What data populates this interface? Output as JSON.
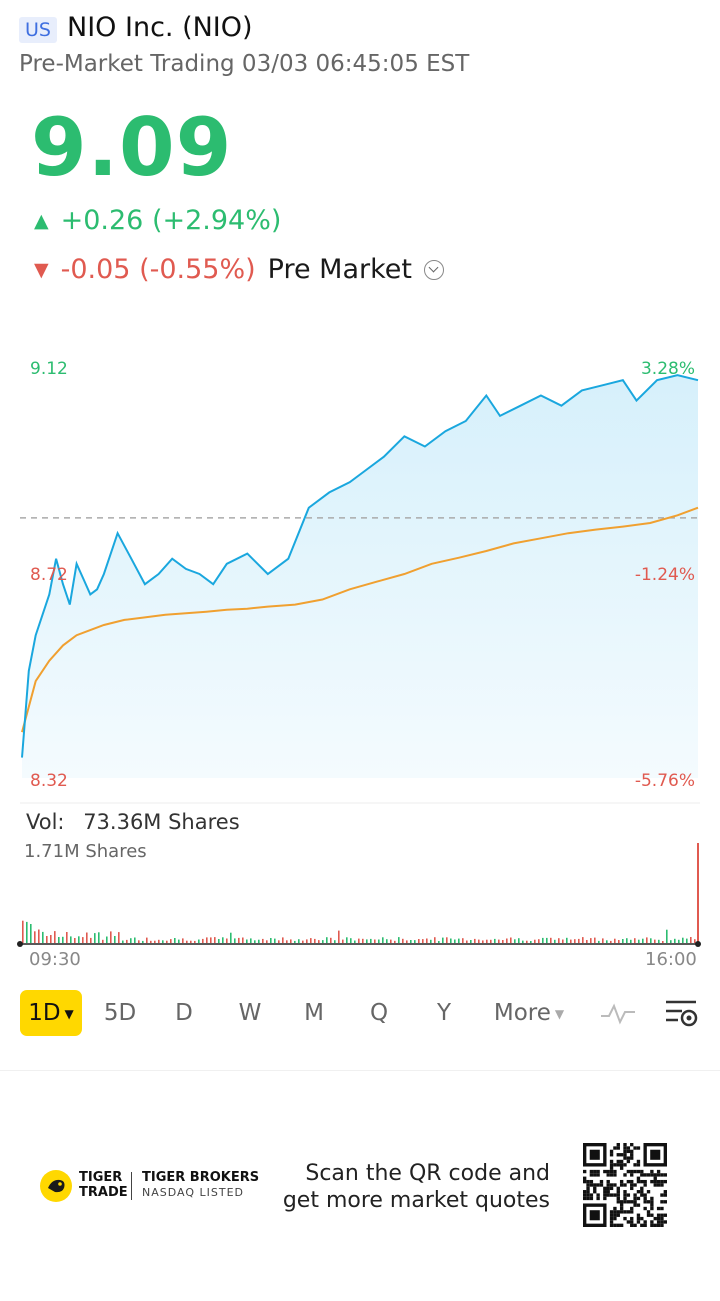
{
  "header": {
    "market_badge": "US",
    "title": "NIO Inc. (NIO)",
    "subtitle": "Pre-Market Trading 03/03 06:45:05 EST"
  },
  "quote": {
    "price": "9.09",
    "change_up": "+0.26 (+2.94%)",
    "change_pre": "-0.05 (-0.55%)",
    "pre_market_label": "Pre Market",
    "color_up": "#2cbc70",
    "color_down": "#e05a50"
  },
  "chart_data": {
    "type": "line",
    "x_labels": [
      "09:30",
      "16:00"
    ],
    "y_left_ticks": [
      "9.12",
      "8.72",
      "8.32"
    ],
    "y_right_ticks": [
      "3.28%",
      "-1.24%",
      "-5.76%"
    ],
    "ylim": [
      8.32,
      9.12
    ],
    "prev_close_ref": 8.83,
    "series": [
      {
        "color": "#1aa7de",
        "x": [
          0,
          1,
          2,
          3,
          4,
          5,
          6,
          7,
          8,
          9,
          10,
          11,
          12,
          14,
          16,
          18,
          20,
          22,
          24,
          26,
          28,
          30,
          33,
          36,
          39,
          42,
          45,
          48,
          50,
          53,
          56,
          59,
          62,
          65,
          68,
          70,
          73,
          76,
          79,
          82,
          85,
          88,
          90,
          93,
          96,
          99
        ],
        "values": [
          8.36,
          8.53,
          8.6,
          8.64,
          8.68,
          8.75,
          8.7,
          8.66,
          8.74,
          8.71,
          8.68,
          8.69,
          8.72,
          8.8,
          8.75,
          8.7,
          8.72,
          8.75,
          8.73,
          8.72,
          8.7,
          8.74,
          8.76,
          8.72,
          8.75,
          8.85,
          8.88,
          8.9,
          8.92,
          8.95,
          8.99,
          8.97,
          9.0,
          9.02,
          9.07,
          9.03,
          9.05,
          9.07,
          9.05,
          9.08,
          9.09,
          9.1,
          9.06,
          9.1,
          9.11,
          9.1
        ]
      },
      {
        "color": "#f0a030",
        "x": [
          0,
          2,
          4,
          6,
          8,
          10,
          12,
          15,
          18,
          21,
          24,
          27,
          30,
          33,
          36,
          40,
          44,
          48,
          52,
          56,
          60,
          64,
          68,
          72,
          76,
          80,
          84,
          88,
          92,
          96,
          99
        ],
        "values": [
          8.41,
          8.51,
          8.55,
          8.58,
          8.6,
          8.61,
          8.62,
          8.63,
          8.635,
          8.64,
          8.643,
          8.646,
          8.65,
          8.652,
          8.656,
          8.66,
          8.67,
          8.69,
          8.705,
          8.72,
          8.74,
          8.752,
          8.765,
          8.78,
          8.79,
          8.8,
          8.807,
          8.813,
          8.82,
          8.835,
          8.85
        ]
      }
    ],
    "volume": {
      "label": "Vol:",
      "total": "73.36M Shares",
      "peak": "1.71M Shares"
    }
  },
  "periods": [
    {
      "key": "1d",
      "label": "1D",
      "active": true
    },
    {
      "key": "5d",
      "label": "5D"
    },
    {
      "key": "d",
      "label": "D"
    },
    {
      "key": "w",
      "label": "W"
    },
    {
      "key": "m",
      "label": "M"
    },
    {
      "key": "q",
      "label": "Q"
    },
    {
      "key": "y",
      "label": "Y"
    },
    {
      "key": "more",
      "label": "More"
    }
  ],
  "icons": {
    "indicator": "line-indicator-icon",
    "settings": "chart-settings-icon"
  },
  "footer": {
    "brand_line1": "TIGER",
    "brand_line2": "TRADE",
    "brand2_line1": "TIGER BROKERS",
    "brand2_line2": "NASDAQ LISTED",
    "scan_line1": "Scan the QR code and",
    "scan_line2": "get more market quotes"
  }
}
